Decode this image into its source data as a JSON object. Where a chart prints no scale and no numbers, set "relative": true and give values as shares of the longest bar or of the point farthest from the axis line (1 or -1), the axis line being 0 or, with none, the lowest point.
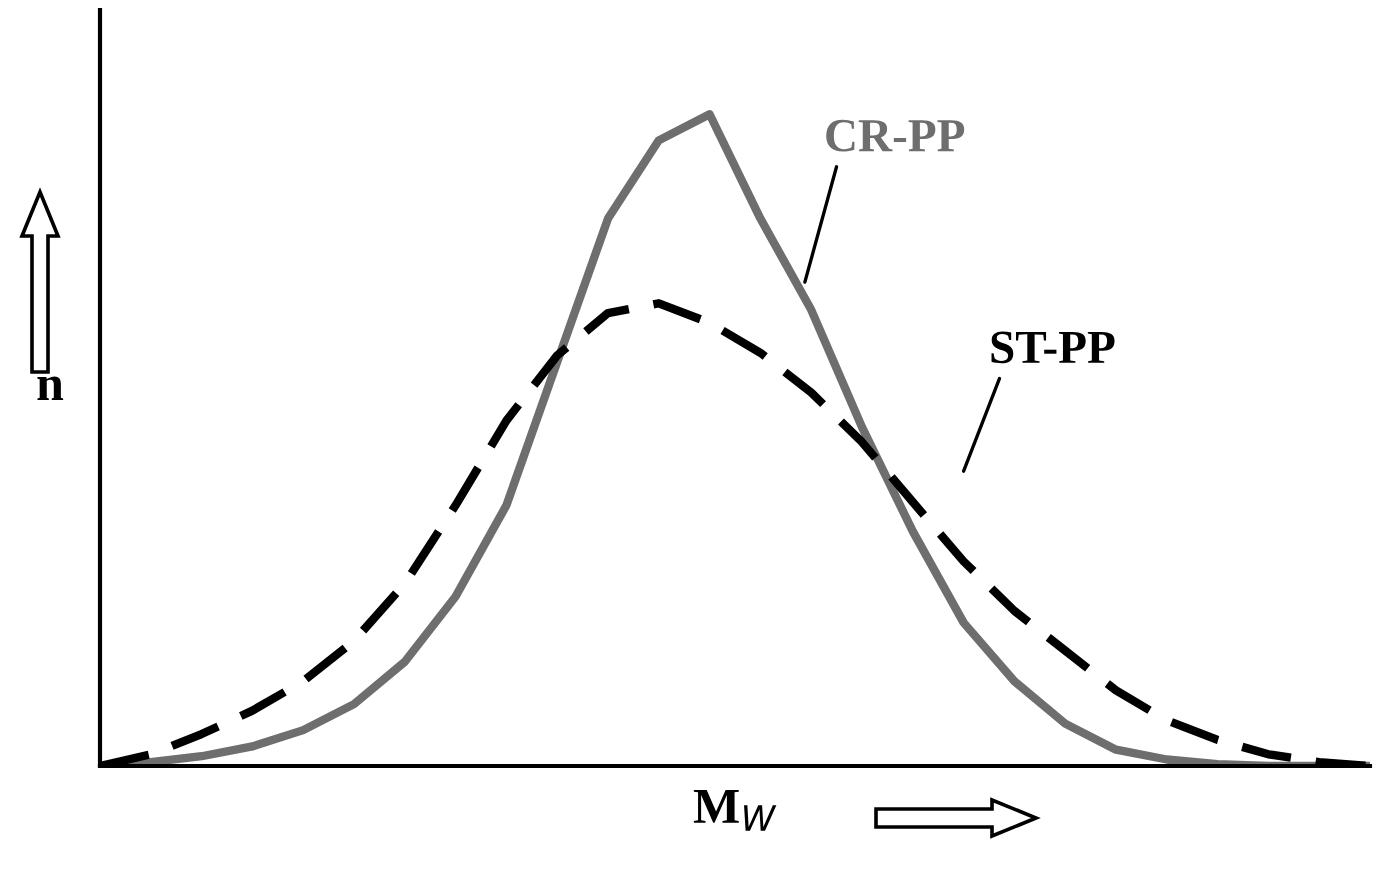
{
  "chart_data": {
    "type": "line",
    "relative": true,
    "xlabel": "M$_{W}$",
    "ylabel": "n",
    "legend": false,
    "categories": [
      null,
      null,
      null,
      null,
      null,
      null,
      null,
      null,
      null,
      null,
      null,
      null,
      null,
      null,
      null,
      null,
      null,
      null,
      null,
      null,
      null,
      null,
      null,
      null,
      null,
      null
    ],
    "series": [
      {
        "name": "CR-PP",
        "color": "#6e6e6e",
        "line_style": "solid",
        "values": [
          0,
          0.006,
          0.015,
          0.03,
          0.055,
          0.095,
          0.16,
          0.26,
          0.4,
          0.62,
          0.84,
          0.96,
          1,
          0.84,
          0.7,
          0.52,
          0.36,
          0.22,
          0.13,
          0.065,
          0.025,
          0.01,
          0.003,
          0,
          0,
          0
        ]
      },
      {
        "name": "ST-PP",
        "color": "#000000",
        "line_style": "dashed",
        "values": [
          0,
          0.018,
          0.049,
          0.085,
          0.13,
          0.192,
          0.28,
          0.4,
          0.53,
          0.63,
          0.695,
          0.71,
          0.68,
          0.634,
          0.573,
          0.497,
          0.405,
          0.314,
          0.238,
          0.177,
          0.116,
          0.07,
          0.04,
          0.018,
          0.006,
          0
        ]
      }
    ]
  }
}
